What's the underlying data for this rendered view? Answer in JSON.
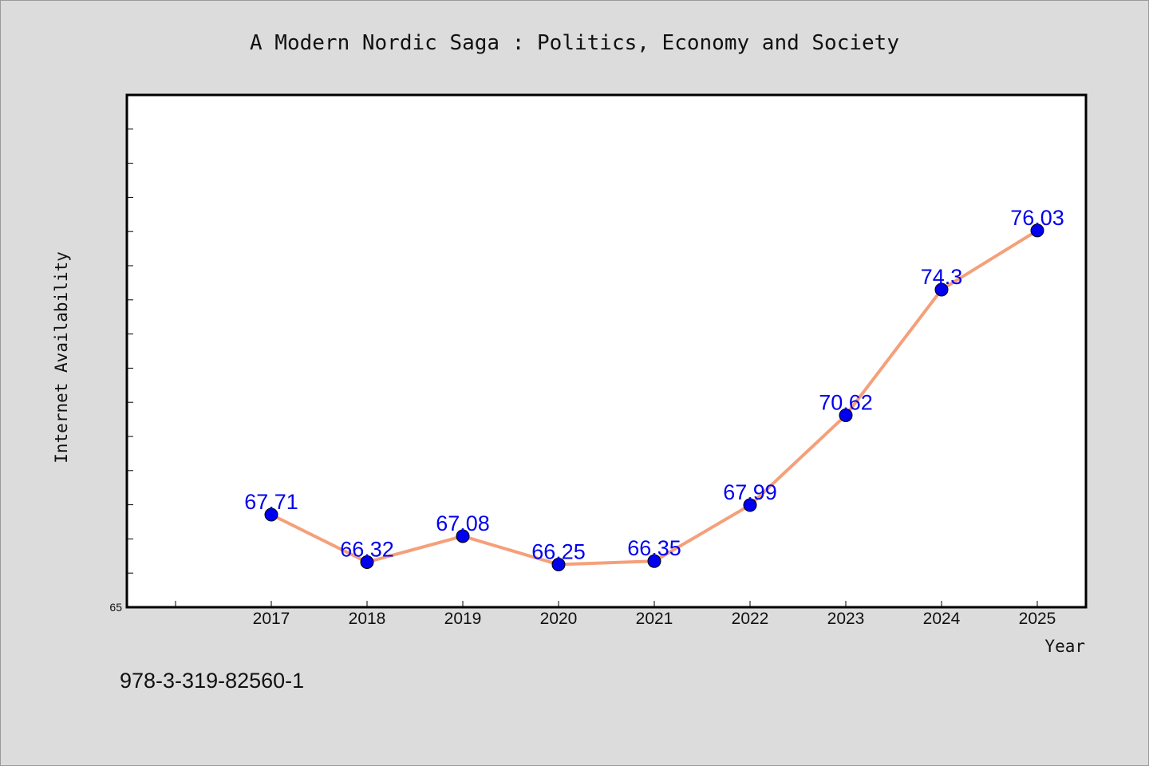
{
  "chart_data": {
    "type": "line",
    "title": "A Modern Nordic Saga : Politics, Economy and Society",
    "xlabel": "Year",
    "ylabel": "Internet Availability",
    "categories": [
      "2017",
      "2018",
      "2019",
      "2020",
      "2021",
      "2022",
      "2023",
      "2024",
      "2025"
    ],
    "series": [
      {
        "values": [
          67.71,
          66.32,
          67.08,
          66.25,
          66.35,
          67.99,
          70.62,
          74.3,
          76.03
        ],
        "labels": [
          "67.71",
          "66.32",
          "67.08",
          "66.25",
          "66.35",
          "67.99",
          "70.62",
          "74.3",
          "76.03"
        ],
        "line_color": "#f4a07a",
        "marker_color": "#0000ee"
      }
    ],
    "ylim": [
      65,
      80
    ],
    "y_tick_labels": [
      "65"
    ],
    "grid": false,
    "legend": "none"
  },
  "colors": {
    "background": "#dcdcdc",
    "plot_background": "#ffffff",
    "line": "#f4a07a",
    "marker": "#0000ee",
    "data_label": "#0000ee"
  },
  "footer_note": "978-3-319-82560-1"
}
